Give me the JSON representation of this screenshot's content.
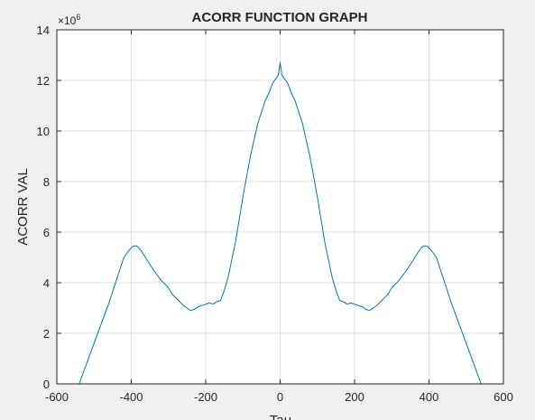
{
  "chart_data": {
    "type": "line",
    "title": "ACORR FUNCTION GRAPH",
    "xlabel": "Tau",
    "ylabel": "ACORR VAL",
    "y_exponent_label": "×10",
    "y_exponent_power": "6",
    "xlim": [
      -600,
      600
    ],
    "ylim": [
      0,
      14
    ],
    "x_ticks": [
      -600,
      -400,
      -200,
      0,
      200,
      400,
      600
    ],
    "y_ticks": [
      0,
      2,
      4,
      6,
      8,
      10,
      12,
      14
    ],
    "x_tick_labels": [
      "-600",
      "-400",
      "-200",
      "0",
      "200",
      "400",
      "600"
    ],
    "y_tick_labels": [
      "0",
      "2",
      "4",
      "6",
      "8",
      "10",
      "12",
      "14"
    ],
    "grid": true,
    "series": [
      {
        "color": "#0072bd",
        "x": [
          -540,
          -500,
          -460,
          -420,
          -405,
          -395,
          -385,
          -375,
          -360,
          -340,
          -320,
          -300,
          -290,
          -280,
          -270,
          -260,
          -250,
          -240,
          -230,
          -220,
          -210,
          -200,
          -190,
          -180,
          -170,
          -160,
          -150,
          -140,
          -120,
          -100,
          -80,
          -60,
          -40,
          -30,
          -20,
          -10,
          -5,
          0,
          5,
          10,
          20,
          30,
          40,
          60,
          80,
          100,
          120,
          140,
          150,
          160,
          170,
          180,
          190,
          200,
          210,
          220,
          230,
          240,
          250,
          260,
          270,
          280,
          290,
          300,
          320,
          340,
          360,
          375,
          385,
          395,
          405,
          420,
          460,
          500,
          540
        ],
        "y": [
          0,
          1.6,
          3.2,
          5.0,
          5.3,
          5.45,
          5.45,
          5.3,
          4.95,
          4.5,
          4.1,
          3.8,
          3.55,
          3.4,
          3.25,
          3.1,
          3.0,
          2.9,
          2.95,
          3.05,
          3.1,
          3.15,
          3.2,
          3.15,
          3.25,
          3.3,
          3.7,
          4.2,
          5.6,
          7.4,
          9.0,
          10.3,
          11.2,
          11.5,
          11.9,
          12.1,
          12.2,
          12.7,
          12.2,
          12.1,
          11.9,
          11.5,
          11.2,
          10.3,
          9.0,
          7.4,
          5.6,
          4.2,
          3.7,
          3.3,
          3.25,
          3.15,
          3.2,
          3.15,
          3.1,
          3.05,
          2.95,
          2.9,
          3.0,
          3.1,
          3.25,
          3.4,
          3.55,
          3.8,
          4.1,
          4.5,
          4.95,
          5.3,
          5.45,
          5.45,
          5.3,
          5.0,
          3.2,
          1.6,
          0
        ]
      }
    ]
  }
}
